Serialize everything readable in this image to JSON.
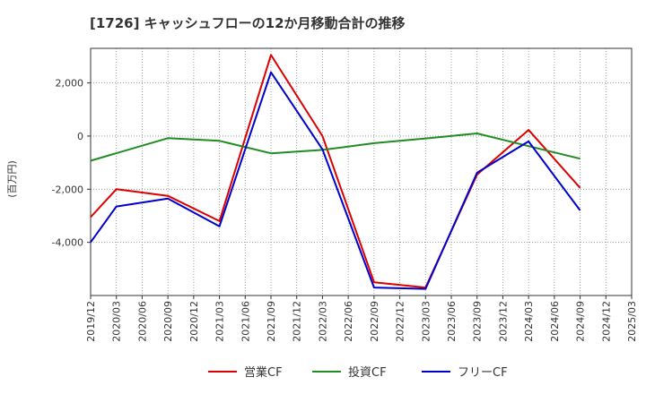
{
  "chart_data": {
    "type": "line",
    "title": "[1726]  キャッシュフローの12か月移動合計の推移",
    "ylabel": "(百万円)",
    "xlabel": "",
    "ylim": [
      -6000,
      3300
    ],
    "yticks": [
      2000,
      0,
      -2000,
      -4000
    ],
    "ytick_labels": [
      "2,000",
      "0",
      "-2,000",
      "-4,000"
    ],
    "x_tick_labels": [
      "2019/12",
      "2020/03",
      "2020/06",
      "2020/09",
      "2020/12",
      "2021/03",
      "2021/06",
      "2021/09",
      "2021/12",
      "2022/03",
      "2022/06",
      "2022/09",
      "2022/12",
      "2023/03",
      "2023/06",
      "2023/09",
      "2023/12",
      "2024/03",
      "2024/06",
      "2024/09",
      "2024/12",
      "2025/03"
    ],
    "grid": true,
    "legend_position": "bottom",
    "series": [
      {
        "name": "営業CF",
        "color": "#dd0000",
        "points": [
          {
            "x": "2019/12",
            "y": -3050
          },
          {
            "x": "2020/03",
            "y": -2000
          },
          {
            "x": "2020/09",
            "y": -2250
          },
          {
            "x": "2021/03",
            "y": -3200
          },
          {
            "x": "2021/09",
            "y": 3050
          },
          {
            "x": "2022/03",
            "y": 0
          },
          {
            "x": "2022/09",
            "y": -5500
          },
          {
            "x": "2023/03",
            "y": -5700
          },
          {
            "x": "2023/09",
            "y": -1450
          },
          {
            "x": "2024/03",
            "y": 230
          },
          {
            "x": "2024/09",
            "y": -1950
          }
        ]
      },
      {
        "name": "投資CF",
        "color": "#228b22",
        "points": [
          {
            "x": "2019/12",
            "y": -930
          },
          {
            "x": "2020/09",
            "y": -80
          },
          {
            "x": "2021/03",
            "y": -180
          },
          {
            "x": "2021/09",
            "y": -650
          },
          {
            "x": "2022/03",
            "y": -520
          },
          {
            "x": "2022/09",
            "y": -270
          },
          {
            "x": "2023/03",
            "y": -90
          },
          {
            "x": "2023/09",
            "y": 100
          },
          {
            "x": "2024/03",
            "y": -380
          },
          {
            "x": "2024/09",
            "y": -850
          }
        ]
      },
      {
        "name": "フリーCF",
        "color": "#0000cc",
        "points": [
          {
            "x": "2019/12",
            "y": -4000
          },
          {
            "x": "2020/03",
            "y": -2650
          },
          {
            "x": "2020/09",
            "y": -2350
          },
          {
            "x": "2021/03",
            "y": -3400
          },
          {
            "x": "2021/09",
            "y": 2400
          },
          {
            "x": "2022/03",
            "y": -500
          },
          {
            "x": "2022/09",
            "y": -5700
          },
          {
            "x": "2023/03",
            "y": -5750
          },
          {
            "x": "2023/09",
            "y": -1380
          },
          {
            "x": "2024/03",
            "y": -200
          },
          {
            "x": "2024/09",
            "y": -2800
          }
        ]
      }
    ]
  }
}
